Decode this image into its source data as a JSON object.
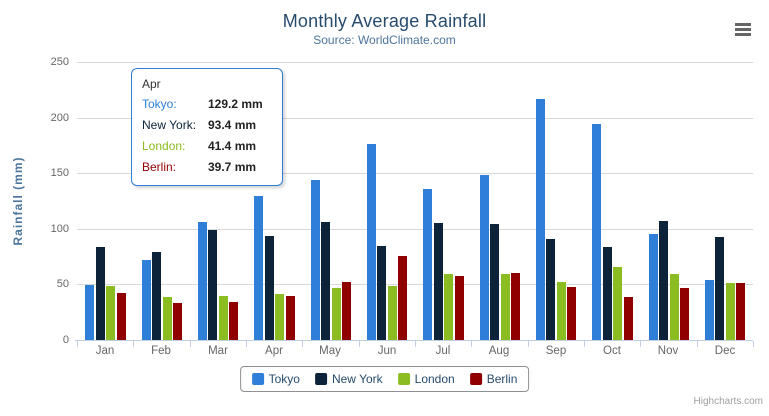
{
  "chart": {
    "title": "Monthly Average Rainfall",
    "subtitle": "Source: WorldClimate.com",
    "context_menu_icon": "hamburger-menu-icon",
    "credits_text": "Highcharts.com"
  },
  "chart_data": {
    "type": "bar",
    "title": "Monthly Average Rainfall",
    "subtitle": "Source: WorldClimate.com",
    "categories": [
      "Jan",
      "Feb",
      "Mar",
      "Apr",
      "May",
      "Jun",
      "Jul",
      "Aug",
      "Sep",
      "Oct",
      "Nov",
      "Dec"
    ],
    "series": [
      {
        "name": "Tokyo",
        "color": "#2f7ed8",
        "values": [
          49.9,
          71.5,
          106.4,
          129.2,
          144.0,
          176.0,
          135.6,
          148.5,
          216.4,
          194.1,
          95.6,
          54.4
        ]
      },
      {
        "name": "New York",
        "color": "#0d233a",
        "values": [
          83.6,
          78.8,
          98.5,
          93.4,
          106.0,
          84.5,
          105.0,
          104.3,
          91.2,
          83.5,
          106.6,
          92.3
        ]
      },
      {
        "name": "London",
        "color": "#8bbc21",
        "values": [
          48.9,
          38.8,
          39.3,
          41.4,
          47.0,
          48.3,
          59.0,
          59.6,
          52.4,
          65.2,
          59.3,
          51.2
        ]
      },
      {
        "name": "Berlin",
        "color": "#910000",
        "values": [
          42.4,
          33.2,
          34.5,
          39.7,
          52.6,
          75.5,
          57.4,
          60.4,
          47.6,
          39.1,
          46.8,
          51.1
        ]
      }
    ],
    "xlabel": "",
    "ylabel": "Rainfall (mm)",
    "ylim": [
      0,
      250
    ],
    "yticks": [
      0,
      50,
      100,
      150,
      200,
      250
    ],
    "grid": true,
    "legend_position": "bottom-center"
  },
  "tooltip": {
    "header": "Apr",
    "rows": [
      {
        "label": "Tokyo:",
        "value": "129.2 mm",
        "color": "#2f7ed8"
      },
      {
        "label": "New York:",
        "value": "93.4 mm",
        "color": "#0d233a"
      },
      {
        "label": "London:",
        "value": "41.4 mm",
        "color": "#8bbc21"
      },
      {
        "label": "Berlin:",
        "value": "39.7 mm",
        "color": "#910000"
      }
    ]
  },
  "colors": {
    "title": "#274b6d",
    "subtitle": "#4d759e",
    "axis_labels": "#666666",
    "gridline": "#d8d8d8",
    "axis_line": "#c0d0e0",
    "legend_border": "#909090",
    "tooltip_border": "#2f7ed8"
  }
}
